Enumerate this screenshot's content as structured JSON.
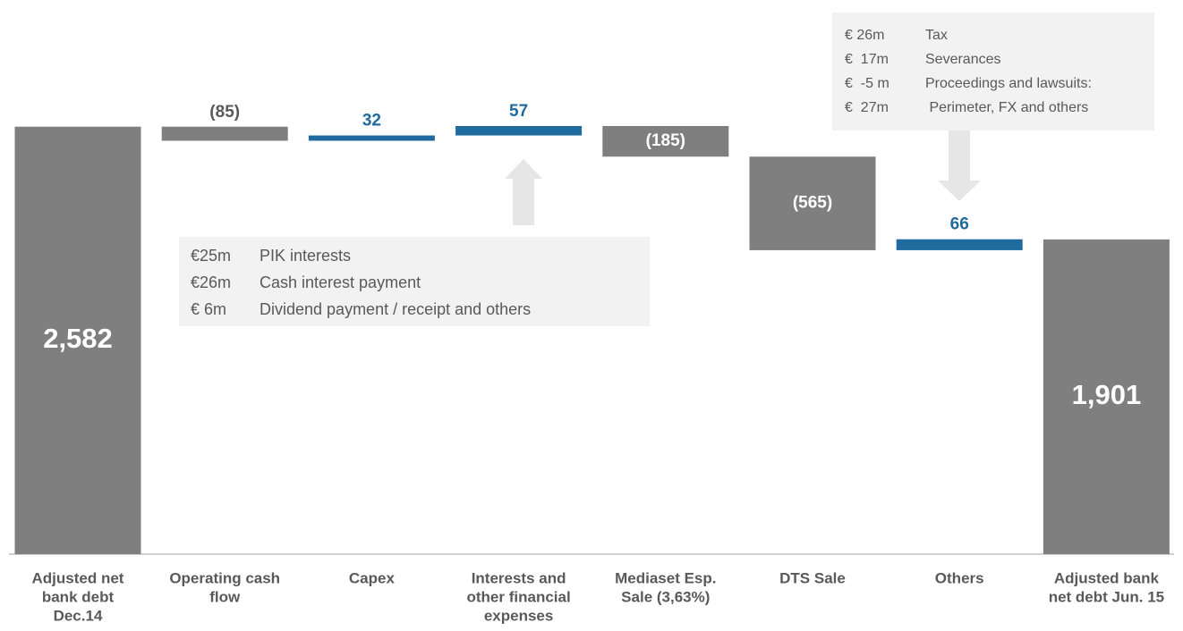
{
  "chart_data": {
    "type": "waterfall",
    "categories": [
      [
        "Adjusted net",
        "bank debt",
        "Dec.14"
      ],
      [
        "Operating cash",
        "flow"
      ],
      [
        "Capex"
      ],
      [
        "Interests and",
        "other financial",
        "expenses"
      ],
      [
        "Mediaset Esp.",
        "Sale (3,63%)"
      ],
      [
        "DTS Sale"
      ],
      [
        "Others"
      ],
      [
        "Adjusted bank",
        "net debt Jun. 15"
      ]
    ],
    "values": [
      2582,
      -85,
      32,
      57,
      -185,
      -565,
      66,
      1901
    ],
    "value_labels": [
      "2,582",
      "(85)",
      "32",
      "57",
      "(185)",
      "(565)",
      "66",
      "1,901"
    ],
    "measure": [
      "total",
      "relative",
      "relative",
      "relative",
      "relative",
      "relative",
      "relative",
      "total"
    ],
    "colors": {
      "total": "#7f7f7f",
      "decrease": "#7f7f7f",
      "increase": "#1f6b9e"
    },
    "annotations": [
      {
        "category": 3,
        "rows": [
          [
            "€25m",
            "PIK interests"
          ],
          [
            "€26m",
            "Cash interest payment"
          ],
          [
            "€ 6m",
            "Dividend payment / receipt and others"
          ]
        ]
      },
      {
        "category": 6,
        "rows": [
          [
            "€ 26m",
            "Tax"
          ],
          [
            "€  17m",
            "Severances"
          ],
          [
            "€  -5 m",
            "Proceedings and lawsuits:"
          ],
          [
            "€  27m",
            " Perimeter, FX and others"
          ]
        ]
      }
    ]
  }
}
